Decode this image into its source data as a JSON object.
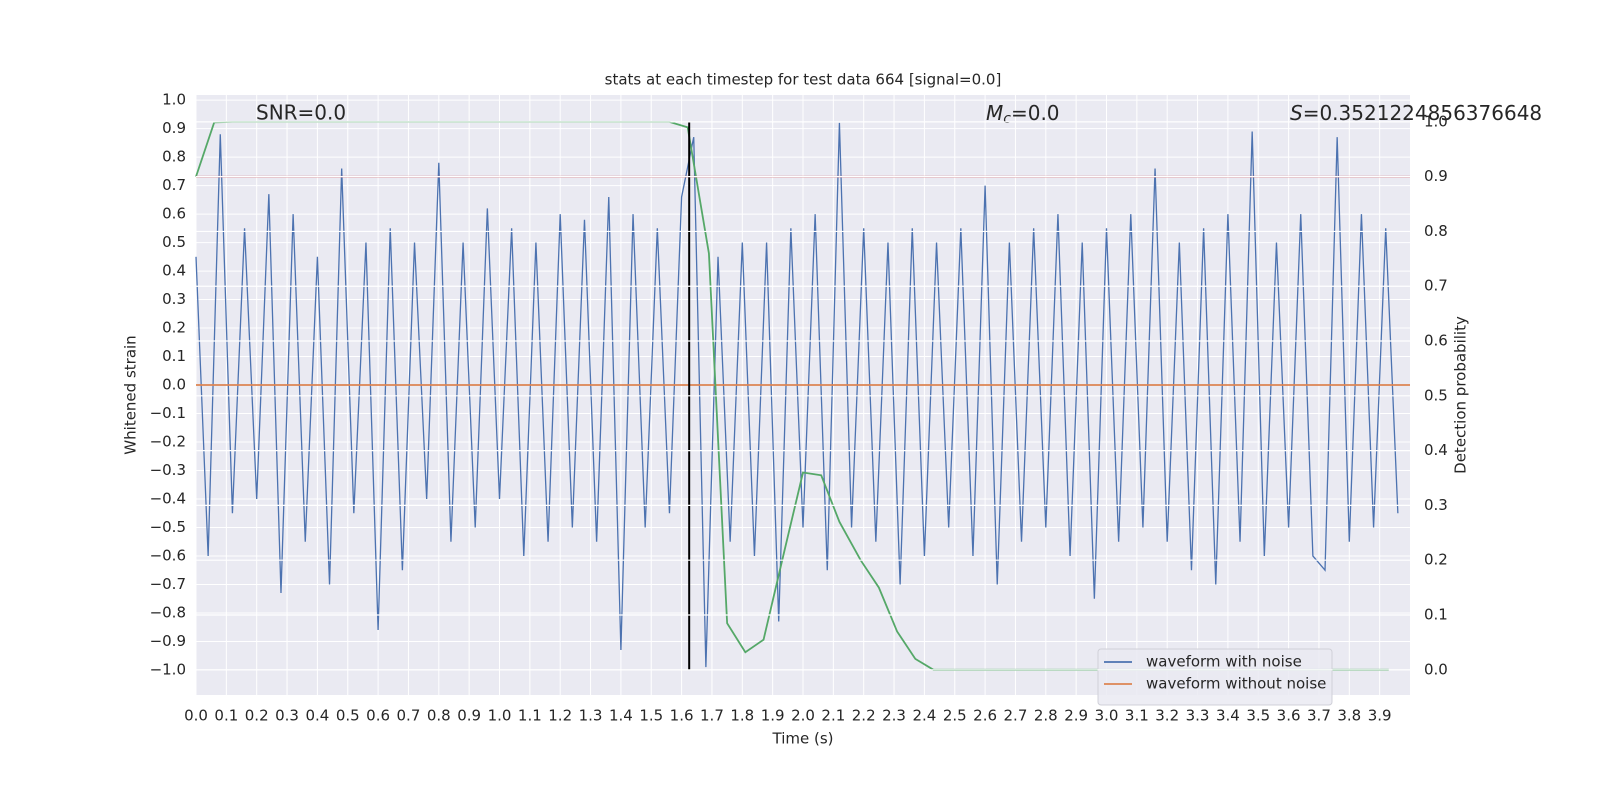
{
  "chart_data": {
    "type": "line",
    "title": "stats at each timestep for test data 664 [signal=0.0]",
    "xlabel": "Time (s)",
    "ylabel": "Whitened strain",
    "y2label": "Detection probability",
    "annotations": [
      {
        "text": "SNR=0.0"
      },
      {
        "symbol": "M",
        "subscript": "c",
        "text": "=0.0"
      },
      {
        "symbol": "S",
        "text": "=0.3521224856376648"
      }
    ],
    "xlim": [
      0,
      4.0
    ],
    "ylim": [
      -1.088,
      1.018
    ],
    "y2lim": [
      -0.046,
      1.049
    ],
    "xticks": [
      {
        "value": 0,
        "label": "0.0"
      },
      0.1,
      0.2,
      0.3,
      0.4,
      0.5,
      0.6,
      0.7,
      0.8,
      0.9,
      {
        "value": 1,
        "label": "1.0"
      },
      1.1,
      1.2,
      1.3,
      1.4,
      1.5,
      1.6,
      1.7,
      1.8,
      1.9,
      {
        "value": 2,
        "label": "2.0"
      },
      2.1,
      2.2,
      2.3,
      2.4,
      2.5,
      2.6,
      2.7,
      2.8,
      2.9,
      {
        "value": 3,
        "label": "3.0"
      },
      3.1,
      3.2,
      3.3,
      3.4,
      3.5,
      3.6,
      3.7,
      3.8,
      3.9
    ],
    "yticks": [
      {
        "value": 1,
        "label": "1.0"
      },
      0.9,
      0.8,
      0.7,
      0.6,
      0.5,
      0.4,
      0.3,
      0.2,
      0.1,
      {
        "value": 0,
        "label": "0.0"
      },
      {
        "value": -0.1,
        "label": "−0.1"
      },
      {
        "value": -0.2,
        "label": "−0.2"
      },
      {
        "value": -0.3,
        "label": "−0.3"
      },
      {
        "value": -0.4,
        "label": "−0.4"
      },
      {
        "value": -0.5,
        "label": "−0.5"
      },
      {
        "value": -0.6,
        "label": "−0.6"
      },
      {
        "value": -0.7,
        "label": "−0.7"
      },
      {
        "value": -0.8,
        "label": "−0.8"
      },
      {
        "value": -0.9,
        "label": "−0.9"
      },
      {
        "value": -1,
        "label": "−1.0"
      }
    ],
    "y2ticks": [
      {
        "value": 0,
        "label": "0.0"
      },
      0.1,
      0.2,
      0.3,
      0.4,
      0.5,
      0.6,
      0.7,
      0.8,
      0.9,
      {
        "value": 1,
        "label": "1.0"
      }
    ],
    "grid": true,
    "legend": "lower right",
    "series": [
      {
        "name": "waveform with noise",
        "color": "#4c72b0",
        "x": [
          0,
          0.04,
          0.08,
          0.12,
          0.16,
          0.2,
          0.24,
          0.28,
          0.32,
          0.36,
          0.4,
          0.44,
          0.48,
          0.52,
          0.56,
          0.6,
          0.64,
          0.68,
          0.72,
          0.76,
          0.8,
          0.84,
          0.88,
          0.92,
          0.96,
          1.0,
          1.04,
          1.08,
          1.12,
          1.16,
          1.2,
          1.24,
          1.28,
          1.32,
          1.36,
          1.4,
          1.44,
          1.48,
          1.52,
          1.56,
          1.6,
          1.64,
          1.68,
          1.72,
          1.76,
          1.8,
          1.84,
          1.88,
          1.92,
          1.96,
          2.0,
          2.04,
          2.08,
          2.12,
          2.16,
          2.2,
          2.24,
          2.28,
          2.32,
          2.36,
          2.4,
          2.44,
          2.48,
          2.52,
          2.56,
          2.6,
          2.64,
          2.68,
          2.72,
          2.76,
          2.8,
          2.84,
          2.88,
          2.92,
          2.96,
          3.0,
          3.04,
          3.08,
          3.12,
          3.16,
          3.2,
          3.24,
          3.28,
          3.32,
          3.36,
          3.4,
          3.44,
          3.48,
          3.52,
          3.56,
          3.6,
          3.64,
          3.68,
          3.72,
          3.76,
          3.8,
          3.84,
          3.88,
          3.92,
          3.96
        ],
        "values": [
          0.45,
          -0.6,
          0.88,
          -0.45,
          0.55,
          -0.4,
          0.67,
          -0.73,
          0.6,
          -0.55,
          0.45,
          -0.7,
          0.76,
          -0.45,
          0.5,
          -0.86,
          0.55,
          -0.65,
          0.5,
          -0.4,
          0.78,
          -0.55,
          0.5,
          -0.5,
          0.62,
          -0.4,
          0.55,
          -0.6,
          0.5,
          -0.55,
          0.6,
          -0.5,
          0.58,
          -0.55,
          0.66,
          -0.93,
          0.6,
          -0.5,
          0.55,
          -0.45,
          0.66,
          0.87,
          -0.99,
          0.45,
          -0.55,
          0.5,
          -0.6,
          0.5,
          -0.83,
          0.55,
          -0.5,
          0.6,
          -0.65,
          0.92,
          -0.5,
          0.55,
          -0.55,
          0.5,
          -0.7,
          0.55,
          -0.6,
          0.5,
          -0.5,
          0.55,
          -0.6,
          0.7,
          -0.7,
          0.5,
          -0.55,
          0.55,
          -0.5,
          0.6,
          -0.6,
          0.5,
          -0.75,
          0.55,
          -0.55,
          0.6,
          -0.5,
          0.76,
          -0.55,
          0.5,
          -0.65,
          0.55,
          -0.7,
          0.6,
          -0.55,
          0.89,
          -0.6,
          0.5,
          -0.5,
          0.6,
          -0.6,
          -0.65,
          0.87,
          -0.55,
          0.6,
          -0.5,
          0.55,
          -0.45
        ]
      },
      {
        "name": "waveform without noise",
        "color": "#dd8452",
        "x": [
          0,
          4.0
        ],
        "values": [
          0,
          0
        ]
      },
      {
        "color": "#55a868",
        "axis": "y2",
        "x": [
          0,
          0.06,
          0.12,
          1.56,
          1.62,
          1.69,
          1.75,
          1.81,
          1.87,
          1.94,
          2.0,
          2.06,
          2.12,
          2.19,
          2.25,
          2.31,
          2.37,
          2.43,
          3.93
        ],
        "values": [
          0.9,
          0.999,
          1.0,
          1.0,
          0.99,
          0.76,
          0.085,
          0.032,
          0.055,
          0.22,
          0.36,
          0.355,
          0.27,
          0.2,
          0.15,
          0.07,
          0.02,
          0.0,
          0.0
        ]
      }
    ],
    "hlines": [
      {
        "value": 0.9,
        "axis": "y2",
        "color": "#c44e52"
      }
    ],
    "vlines": [
      {
        "x": 1.625,
        "ymin": 0,
        "ymax": 1,
        "axis": "y2",
        "color": "#000000"
      }
    ]
  }
}
